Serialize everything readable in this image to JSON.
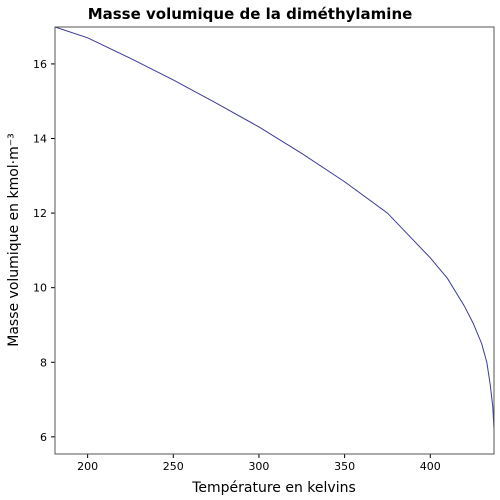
{
  "chart_data": {
    "type": "line",
    "title": "Masse volumique de la diméthylamine",
    "x_label": "Température en kelvins",
    "y_label": "Masse volumique en kmol·m⁻³",
    "x": [
      180.96,
      200,
      225,
      250,
      275,
      300,
      325,
      350,
      375,
      400,
      410,
      420,
      425,
      430,
      433,
      435,
      436.5,
      437.2
    ],
    "series": [
      {
        "name": "Masse volumique",
        "color": "#3a3a9a",
        "values": [
          16.99,
          16.7,
          16.15,
          15.57,
          14.95,
          14.31,
          13.6,
          12.84,
          12.0,
          10.8,
          10.25,
          9.5,
          9.05,
          8.5,
          8.0,
          7.4,
          6.8,
          6.2
        ]
      }
    ],
    "xlim": [
      180.96,
      437.2
    ],
    "xticks": [
      200,
      250,
      300,
      350,
      400
    ],
    "ylim": [
      5.54,
      16.99
    ],
    "yticks": [
      6,
      8,
      10,
      12,
      14,
      16
    ]
  }
}
